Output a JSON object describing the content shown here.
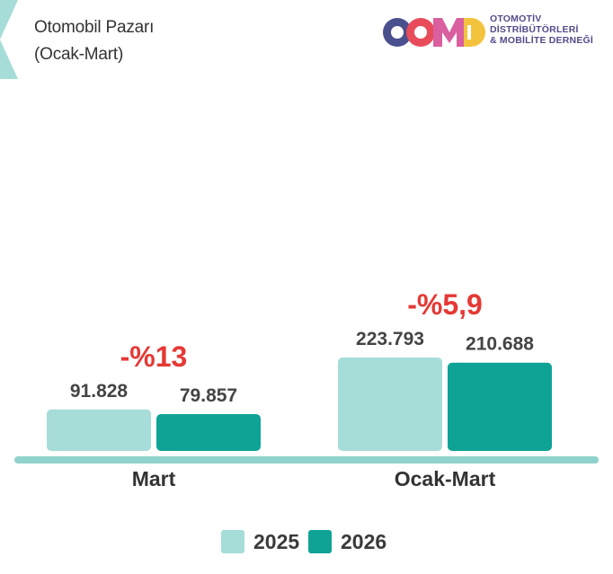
{
  "header": {
    "title_line1": "Otomobil Pazarı",
    "title_line2": "(Ocak-Mart)"
  },
  "logo": {
    "wordmark": "ODMD",
    "line1": "OTOMOTİV",
    "line2": "DİSTRİBÜTÖRLERİ",
    "line3": "& MOBİLİTE DERNEĞİ"
  },
  "colors": {
    "series_2025": "#a6ddd9",
    "series_2026": "#0fa396",
    "baseline": "#8fd3cc",
    "change_text": "#e53935",
    "value_text": "#444444",
    "category_text": "#333333"
  },
  "chart_data": {
    "type": "bar",
    "title": "Otomobil Pazarı (Ocak-Mart)",
    "categories": [
      "Mart",
      "Ocak-Mart"
    ],
    "series": [
      {
        "name": "2025",
        "values": [
          91828,
          223793
        ],
        "labels": [
          "91.828",
          "223.793"
        ]
      },
      {
        "name": "2026",
        "values": [
          79857,
          210688
        ],
        "labels": [
          "79.857",
          "210.688"
        ]
      }
    ],
    "changes": [
      "-%13",
      "-%5,9"
    ],
    "legend": [
      "2025",
      "2026"
    ],
    "legend_position": "bottom",
    "grid": false
  }
}
